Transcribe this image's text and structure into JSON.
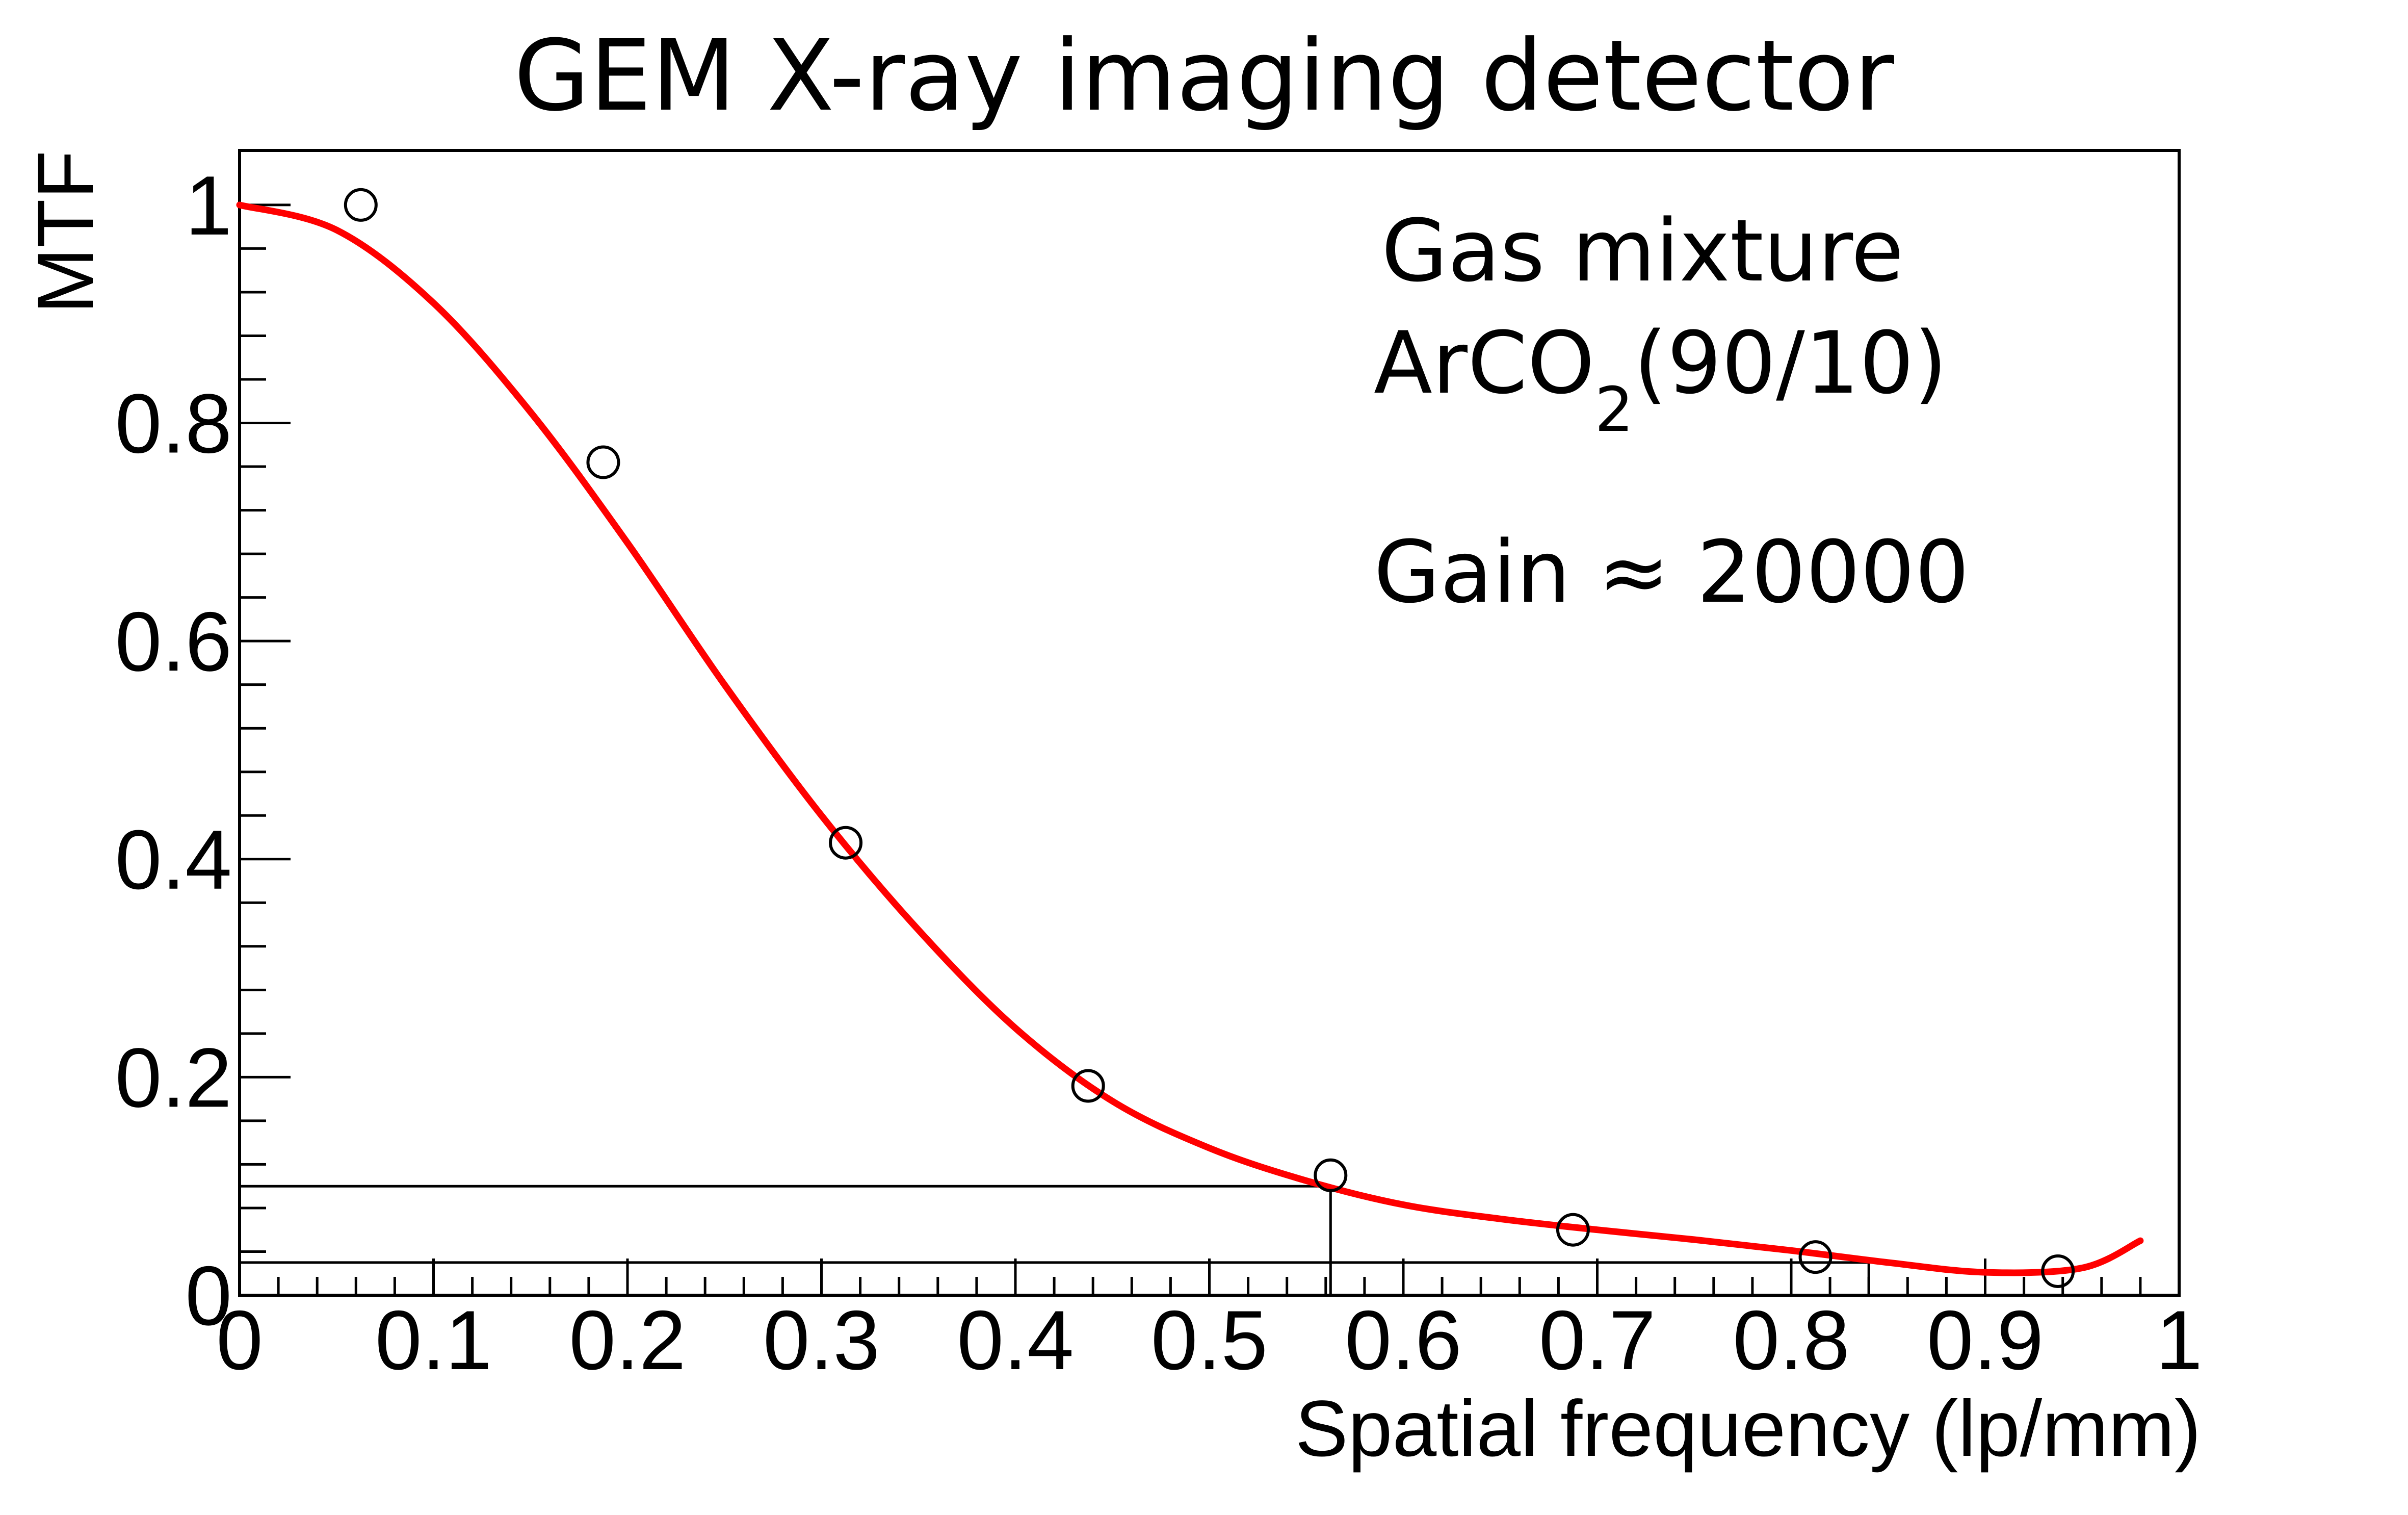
{
  "chart_data": {
    "type": "scatter",
    "title": "GEM X-ray imaging detector",
    "xlabel": "Spatial frequency (lp/mm)",
    "ylabel": "MTF",
    "xlim": [
      0,
      1
    ],
    "ylim": [
      0,
      1.05
    ],
    "x_ticks": [
      0,
      0.1,
      0.2,
      0.3,
      0.4,
      0.5,
      0.6,
      0.7,
      0.8,
      0.9,
      1
    ],
    "x_tick_labels": [
      "0",
      "0.1",
      "0.2",
      "0.3",
      "0.4",
      "0.5",
      "0.6",
      "0.7",
      "0.8",
      "0.9",
      "1"
    ],
    "y_ticks": [
      0,
      0.2,
      0.4,
      0.6,
      0.8,
      1
    ],
    "y_tick_labels": [
      "0",
      "0.2",
      "0.4",
      "0.6",
      "0.8",
      "1"
    ],
    "grid": false,
    "legend": "none",
    "series": [
      {
        "kind": "points",
        "marker": "open-circle",
        "color": "#000000",
        "x": [
          0.0625,
          0.1875,
          0.3125,
          0.4375,
          0.5625,
          0.6875,
          0.8125,
          0.9375
        ],
        "y": [
          1.0,
          0.764,
          0.415,
          0.192,
          0.11,
          0.06,
          0.035,
          0.022
        ]
      },
      {
        "kind": "fit-curve",
        "color": "#ff0000",
        "x": [
          0,
          0.05,
          0.1,
          0.15,
          0.2,
          0.25,
          0.3,
          0.35,
          0.4,
          0.45,
          0.5,
          0.55,
          0.6,
          0.65,
          0.7,
          0.75,
          0.8,
          0.85,
          0.9,
          0.95,
          0.98
        ],
        "y": [
          1.0,
          0.977,
          0.91,
          0.81,
          0.69,
          0.56,
          0.44,
          0.335,
          0.245,
          0.178,
          0.135,
          0.105,
          0.083,
          0.07,
          0.06,
          0.051,
          0.041,
          0.03,
          0.021,
          0.025,
          0.05
        ]
      }
    ],
    "reference_lines": [
      {
        "from": [
          0,
          0.1
        ],
        "to": [
          0.5625,
          0.1
        ]
      },
      {
        "from": [
          0.5625,
          0.1
        ],
        "to": [
          0.5625,
          0
        ]
      },
      {
        "from": [
          0,
          0.03
        ],
        "to": [
          0.84,
          0.03
        ]
      },
      {
        "from": [
          0.84,
          0.03
        ],
        "to": [
          0.84,
          0
        ]
      }
    ],
    "annotations": {
      "line1": "Gas mixture",
      "line2_main": "ArCO",
      "line2_sub": "2",
      "line2_tail": "(90/10)",
      "line3": "Gain ≈ 20000"
    }
  }
}
